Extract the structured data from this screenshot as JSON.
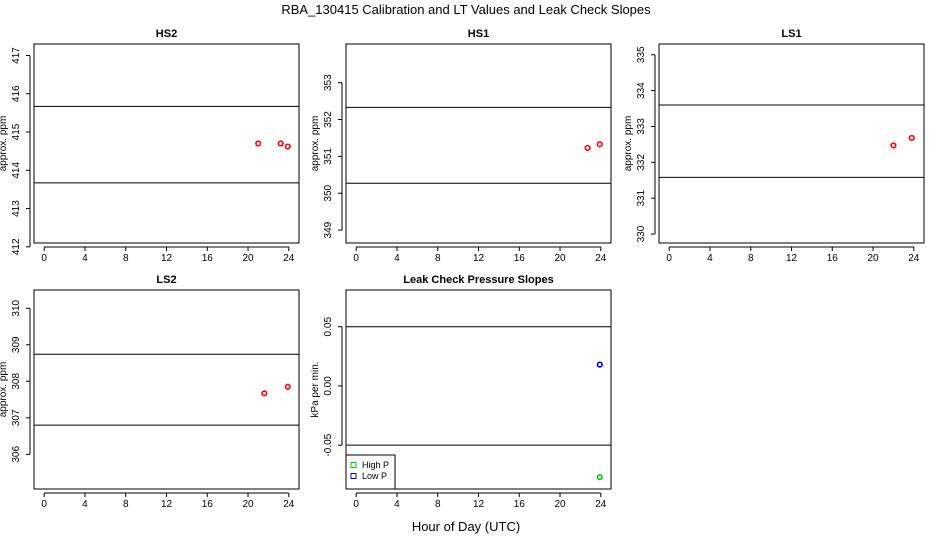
{
  "figure": {
    "title": "RBA_130415  Calibration and LT Values and Leak Check Slopes",
    "xlabel": "Hour of Day (UTC)"
  },
  "chart_data": [
    {
      "type": "scatter",
      "title": "HS2",
      "ylabel": "approx. ppm",
      "xlim": [
        -1,
        25
      ],
      "ylim": [
        412.1,
        417.3
      ],
      "xticks": [
        0,
        4,
        8,
        12,
        16,
        20,
        24
      ],
      "yticks": [
        412,
        413,
        414,
        415,
        416,
        417
      ],
      "hlines": [
        413.67,
        415.67
      ],
      "grid": false,
      "series": [
        {
          "color": "#ff0000",
          "marker": "circle",
          "points": [
            [
              21.0,
              414.7
            ],
            [
              23.2,
              414.7
            ],
            [
              23.9,
              414.62
            ]
          ]
        }
      ]
    },
    {
      "type": "scatter",
      "title": "HS1",
      "ylabel": "approx. ppm",
      "xlim": [
        -1,
        25
      ],
      "ylim": [
        348.65,
        354.05
      ],
      "xticks": [
        0,
        4,
        8,
        12,
        16,
        20,
        24
      ],
      "yticks": [
        349,
        350,
        351,
        352,
        353
      ],
      "hlines": [
        350.27,
        352.33
      ],
      "grid": false,
      "series": [
        {
          "color": "#ff0000",
          "marker": "circle",
          "points": [
            [
              22.7,
              351.23
            ],
            [
              23.9,
              351.33
            ]
          ]
        }
      ]
    },
    {
      "type": "scatter",
      "title": "LS1",
      "ylabel": "approx. ppm",
      "xlim": [
        -1,
        25
      ],
      "ylim": [
        329.75,
        335.3
      ],
      "xticks": [
        0,
        4,
        8,
        12,
        16,
        20,
        24
      ],
      "yticks": [
        330,
        331,
        332,
        333,
        334,
        335
      ],
      "hlines": [
        331.58,
        333.6
      ],
      "grid": false,
      "series": [
        {
          "color": "#ff0000",
          "marker": "circle",
          "points": [
            [
              22.0,
              332.47
            ],
            [
              23.8,
              332.68
            ]
          ]
        }
      ]
    },
    {
      "type": "scatter",
      "title": "LS2",
      "ylabel": "approx. ppm",
      "xlim": [
        -1,
        25
      ],
      "ylim": [
        305.05,
        310.5
      ],
      "xticks": [
        0,
        4,
        8,
        12,
        16,
        20,
        24
      ],
      "yticks": [
        306,
        307,
        308,
        309,
        310
      ],
      "hlines": [
        306.8,
        308.74
      ],
      "grid": false,
      "series": [
        {
          "color": "#ff0000",
          "marker": "circle",
          "points": [
            [
              21.6,
              307.67
            ],
            [
              23.9,
              307.85
            ]
          ]
        }
      ]
    },
    {
      "type": "scatter",
      "title": "Leak Check Pressure Slopes",
      "ylabel": "kPa per min.",
      "xlim": [
        -1,
        25
      ],
      "ylim": [
        -0.087,
        0.081
      ],
      "xticks": [
        0,
        4,
        8,
        12,
        16,
        20,
        24
      ],
      "yticks": [
        -0.05,
        0.0,
        0.05
      ],
      "ytick_labels": [
        "-0.05",
        "0.00",
        "0.05"
      ],
      "hlines": [
        -0.05,
        0.05
      ],
      "grid": false,
      "legend": "bottom-left",
      "series": [
        {
          "name": "High P",
          "color": "#00cc00",
          "marker": "circle",
          "points": [
            [
              23.9,
              -0.077
            ]
          ]
        },
        {
          "name": "Low P",
          "color": "#0000ff",
          "marker": "circle",
          "points": [
            [
              23.9,
              0.018
            ]
          ]
        }
      ]
    }
  ]
}
